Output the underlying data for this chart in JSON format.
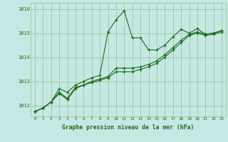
{
  "title": "Graphe pression niveau de la mer (hPa)",
  "bg_color": "#c5e8e5",
  "grid_color": "#9ecf9e",
  "line_color": "#1a6b1a",
  "xlim": [
    -0.5,
    23.5
  ],
  "ylim": [
    1011.55,
    1016.25
  ],
  "yticks": [
    1012,
    1013,
    1014,
    1015,
    1016
  ],
  "xticks": [
    0,
    1,
    2,
    3,
    4,
    5,
    6,
    7,
    8,
    9,
    10,
    11,
    12,
    13,
    14,
    15,
    16,
    17,
    18,
    19,
    20,
    21,
    22,
    23
  ],
  "series": [
    [
      1011.75,
      1011.9,
      1012.15,
      1012.7,
      1012.55,
      1012.85,
      1013.0,
      1013.15,
      1013.25,
      1015.05,
      1015.55,
      1015.92,
      1014.8,
      1014.8,
      1014.3,
      1014.3,
      1014.5,
      1014.85,
      1015.15,
      1015.0,
      1015.18,
      1014.95,
      1015.0,
      1015.1
    ],
    [
      1011.75,
      1011.9,
      1012.15,
      1012.55,
      1012.3,
      1012.75,
      1012.85,
      1013.0,
      1013.1,
      1013.2,
      1013.55,
      1013.55,
      1013.55,
      1013.6,
      1013.7,
      1013.85,
      1014.1,
      1014.4,
      1014.7,
      1014.95,
      1015.05,
      1014.95,
      1015.0,
      1015.1
    ],
    [
      1011.75,
      1011.9,
      1012.15,
      1012.5,
      1012.25,
      1012.7,
      1012.85,
      1012.95,
      1013.05,
      1013.15,
      1013.4,
      1013.4,
      1013.4,
      1013.5,
      1013.6,
      1013.75,
      1014.0,
      1014.3,
      1014.6,
      1014.9,
      1015.0,
      1014.9,
      1014.95,
      1015.05
    ]
  ]
}
